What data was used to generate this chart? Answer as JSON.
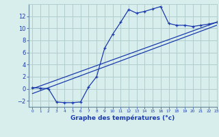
{
  "xlabel": "Graphe des températures (°c)",
  "background_color": "#d8eeed",
  "plot_bg": "#d8eeed",
  "grid_color": "#b0cccc",
  "line_color": "#1a3aad",
  "hours": [
    0,
    1,
    2,
    3,
    4,
    5,
    6,
    7,
    8,
    9,
    10,
    11,
    12,
    13,
    14,
    15,
    16,
    17,
    18,
    19,
    20,
    21,
    22,
    23
  ],
  "temps": [
    0.2,
    0.1,
    0.0,
    -2.2,
    -2.3,
    -2.3,
    -2.2,
    0.3,
    2.0,
    6.7,
    9.0,
    11.0,
    13.1,
    12.5,
    12.8,
    13.2,
    13.6,
    10.8,
    10.5,
    10.5,
    10.3,
    10.5,
    10.7,
    11.0
  ],
  "line1_x": [
    0,
    23
  ],
  "line1_y": [
    0.0,
    11.0
  ],
  "line2_x": [
    0,
    23
  ],
  "line2_y": [
    -0.8,
    10.5
  ],
  "ylim": [
    -3,
    14
  ],
  "xlim": [
    -0.5,
    23
  ],
  "yticks": [
    -2,
    0,
    2,
    4,
    6,
    8,
    10,
    12
  ],
  "xticks": [
    0,
    1,
    2,
    3,
    4,
    5,
    6,
    7,
    8,
    9,
    10,
    11,
    12,
    13,
    14,
    15,
    16,
    17,
    18,
    19,
    20,
    21,
    22,
    23
  ],
  "xlabel_bold": true,
  "xlabel_fontsize": 6.5
}
